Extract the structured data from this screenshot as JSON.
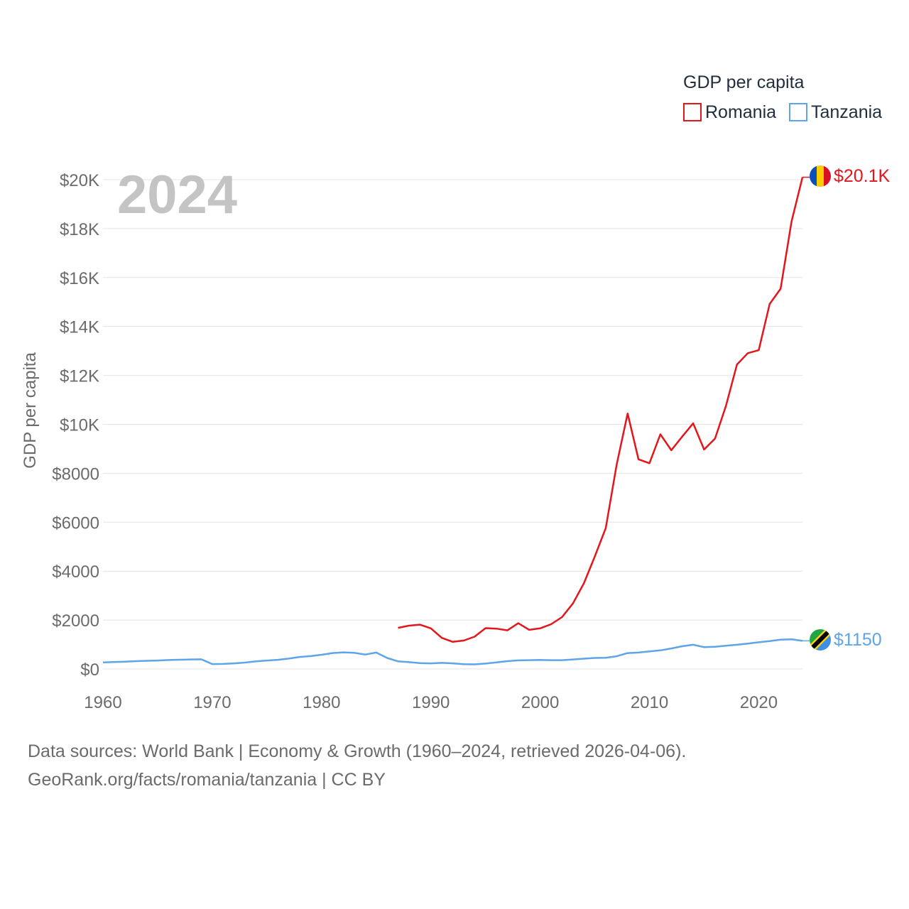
{
  "chart_data": {
    "type": "line",
    "title": "",
    "year_label": "2024",
    "ylabel": "GDP per capita",
    "xlabel": "",
    "xlim": [
      1960,
      2024
    ],
    "ylim": [
      0,
      20500
    ],
    "x_ticks": [
      1960,
      1970,
      1980,
      1990,
      2000,
      2010,
      2020
    ],
    "x_tick_labels": [
      "1960",
      "1970",
      "1980",
      "1990",
      "2000",
      "2010",
      "2020"
    ],
    "y_ticks": [
      0,
      2000,
      4000,
      6000,
      8000,
      10000,
      12000,
      14000,
      16000,
      18000,
      20000
    ],
    "y_tick_labels": [
      "$0",
      "$2000",
      "$4000",
      "$6000",
      "$8000",
      "$10K",
      "$12K",
      "$14K",
      "$16K",
      "$18K",
      "$20K"
    ],
    "grid": true,
    "legend": {
      "title": "GDP per capita",
      "placement": "top-right"
    },
    "series": [
      {
        "name": "Romania",
        "color": "#e3161b",
        "end_label": "$20.1K",
        "x": [
          1987,
          1988,
          1989,
          1990,
          1991,
          1992,
          1993,
          1994,
          1995,
          1996,
          1997,
          1998,
          1999,
          2000,
          2001,
          2002,
          2003,
          2004,
          2005,
          2006,
          2007,
          2008,
          2009,
          2010,
          2011,
          2012,
          2013,
          2014,
          2015,
          2016,
          2017,
          2018,
          2019,
          2020,
          2021,
          2022,
          2023,
          2024
        ],
        "values": [
          1680,
          1770,
          1810,
          1660,
          1270,
          1110,
          1160,
          1320,
          1670,
          1650,
          1580,
          1870,
          1600,
          1660,
          1830,
          2120,
          2680,
          3500,
          4600,
          5760,
          8360,
          10440,
          8570,
          8410,
          9590,
          8940,
          9500,
          10040,
          8970,
          9420,
          10760,
          12440,
          12910,
          13030,
          14920,
          15540,
          18290,
          20100
        ]
      },
      {
        "name": "Tanzania",
        "color": "#5da5e8",
        "end_label": "$1150",
        "x": [
          1960,
          1961,
          1962,
          1963,
          1964,
          1965,
          1966,
          1967,
          1968,
          1969,
          1970,
          1971,
          1972,
          1973,
          1974,
          1975,
          1976,
          1977,
          1978,
          1979,
          1980,
          1981,
          1982,
          1983,
          1984,
          1985,
          1986,
          1987,
          1988,
          1989,
          1990,
          1991,
          1992,
          1993,
          1994,
          1995,
          1996,
          1997,
          1998,
          1999,
          2000,
          2001,
          2002,
          2003,
          2004,
          2005,
          2006,
          2007,
          2008,
          2009,
          2010,
          2011,
          2012,
          2013,
          2014,
          2015,
          2016,
          2017,
          2018,
          2019,
          2020,
          2021,
          2022,
          2023,
          2024
        ],
        "values": [
          270,
          285,
          300,
          318,
          335,
          345,
          365,
          378,
          390,
          395,
          200,
          205,
          230,
          260,
          310,
          345,
          375,
          425,
          490,
          525,
          580,
          650,
          680,
          660,
          590,
          670,
          450,
          310,
          280,
          240,
          230,
          250,
          230,
          195,
          190,
          220,
          270,
          320,
          350,
          360,
          370,
          360,
          360,
          390,
          420,
          450,
          460,
          520,
          650,
          670,
          720,
          760,
          840,
          930,
          990,
          890,
          910,
          950,
          990,
          1040,
          1090,
          1140,
          1200,
          1210,
          1150
        ]
      }
    ]
  },
  "footer": {
    "line1": "Data sources: World Bank | Economy & Growth (1960–2024, retrieved 2026-04-06).",
    "line2": "GeoRank.org/facts/romania/tanzania | CC BY"
  },
  "flags": {
    "romania": {
      "colors": [
        "#0b4fb8",
        "#ffcc00",
        "#d91023"
      ]
    },
    "tanzania": {
      "colors": [
        "#1fa541",
        "#fcd116",
        "#000000",
        "#3d8ee8"
      ]
    }
  }
}
